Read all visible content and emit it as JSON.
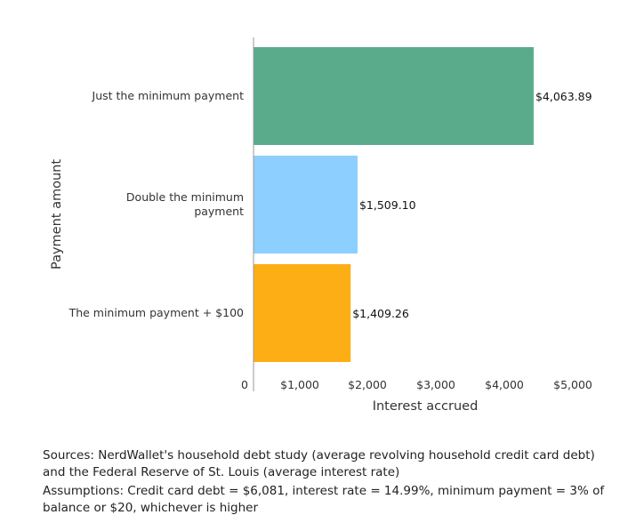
{
  "chart_data": {
    "type": "bar",
    "orientation": "horizontal",
    "categories": [
      [
        "Just the minimum payment"
      ],
      [
        "Double the minimum",
        "payment"
      ],
      [
        "The minimum payment + $100"
      ]
    ],
    "values": [
      4063.89,
      1509.1,
      1409.26
    ],
    "value_labels": [
      "$4,063.89",
      "$1,509.10",
      "$1,409.26"
    ],
    "colors": [
      "#5aab8c",
      "#8dcfff",
      "#fcae14"
    ],
    "xticks": [
      0,
      1000,
      2000,
      3000,
      4000,
      5000
    ],
    "xtick_labels": [
      "0",
      "$1,000",
      "$2,000",
      "$3,000",
      "$4,000",
      "$5,000"
    ],
    "xlim": [
      0,
      5000
    ],
    "xlabel": "Interest accrued",
    "ylabel": "Payment amount",
    "grid": false
  },
  "notes": {
    "sources": "Sources: NerdWallet's household debt study (average revolving household credit card debt) and the Federal Reserve of St. Louis (average interest rate)",
    "assumptions": "Assumptions: Credit card debt = $6,081, interest rate = 14.99%, minimum payment = 3% of balance or $20, whichever is higher"
  }
}
